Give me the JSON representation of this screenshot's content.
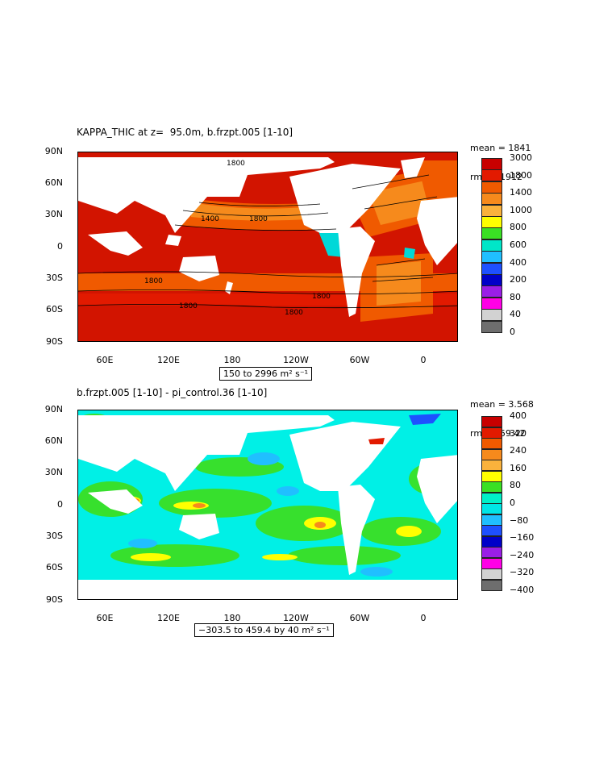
{
  "panels": [
    {
      "title": "KAPPA_THIC at z=  95.0m, b.frzpt.005 [1-10]",
      "stats": {
        "mean": "mean = 1841",
        "rms": "rms = 1912"
      },
      "range_text": "150 to 2996 m² s⁻¹",
      "lat_labels": [
        "90N",
        "60N",
        "30N",
        "0",
        "30S",
        "60S",
        "90S"
      ],
      "lon_labels": [
        "60E",
        "120E",
        "180",
        "120W",
        "60W",
        "0"
      ],
      "legend": {
        "labels": [
          "3000",
          "1800",
          "1400",
          "1000",
          "800",
          "600",
          "400",
          "200",
          "80",
          "40",
          "0"
        ],
        "colors": [
          "#c80000",
          "#e21a00",
          "#f05a00",
          "#f68a1c",
          "#fab23c",
          "#ffff00",
          "#3ae024",
          "#00e6c8",
          "#20bfff",
          "#1e50ff",
          "#0000c8",
          "#9a1ee6",
          "#ff00e6",
          "#d2d2d2",
          "#6e6e6e"
        ]
      },
      "contour_labels": [
        "1800",
        "1400",
        "1800",
        "1800",
        "1800",
        "1800",
        "1800"
      ]
    },
    {
      "title": "b.frzpt.005 [1-10] - pi_control.36 [1-10]",
      "stats": {
        "mean": "mean = 3.568",
        "rms": "rms = 59.42"
      },
      "range_text": "−303.5 to 459.4 by 40 m² s⁻¹",
      "lat_labels": [
        "90N",
        "60N",
        "30N",
        "0",
        "30S",
        "60S",
        "90S"
      ],
      "lon_labels": [
        "60E",
        "120E",
        "180",
        "120W",
        "60W",
        "0"
      ],
      "legend": {
        "labels": [
          "400",
          "320",
          "240",
          "160",
          "80",
          "0",
          "−80",
          "−160",
          "−240",
          "−320",
          "−400"
        ],
        "colors": [
          "#c80000",
          "#e21a00",
          "#f05a00",
          "#f68a1c",
          "#fab23c",
          "#ffff00",
          "#3ae024",
          "#00f0c8",
          "#00e6e6",
          "#20bfff",
          "#1e50ff",
          "#0000c8",
          "#9a1ee6",
          "#ff00e6",
          "#d2d2d2",
          "#6e6e6e"
        ]
      }
    }
  ]
}
